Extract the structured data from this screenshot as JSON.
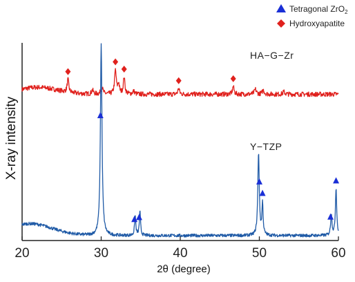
{
  "chart_data": {
    "type": "line",
    "xlabel": "2θ (degree)",
    "ylabel": "X-ray intensity",
    "xlim": [
      20,
      60
    ],
    "x_ticks": [
      20,
      30,
      40,
      50,
      60
    ],
    "x_tick_labels": [
      "20",
      "30",
      "40",
      "50",
      "60"
    ],
    "y_ticks_shown": false,
    "y_scale": "arbitrary units, two traces vertically offset",
    "grid": false,
    "legend_position": "top-right",
    "legend": [
      {
        "symbol": "triangle",
        "color": "#1a2fd6",
        "label": "Tetragonal ZrO",
        "subscript": "2"
      },
      {
        "symbol": "diamond",
        "color": "#e0211d",
        "label": "Hydroxyapatite"
      }
    ],
    "series": [
      {
        "name": "HA−G−Zr",
        "color": "#e0211d",
        "baseline": 0.74,
        "hump": {
          "center": 22,
          "width": 3.5,
          "height": 0.035
        },
        "noise": 0.012,
        "peaks": [
          {
            "x": 25.8,
            "h": 0.065,
            "w": 0.12
          },
          {
            "x": 28.9,
            "h": 0.02,
            "w": 0.15
          },
          {
            "x": 30.1,
            "h": 0.035,
            "w": 0.15
          },
          {
            "x": 31.8,
            "h": 0.12,
            "w": 0.13
          },
          {
            "x": 32.2,
            "h": 0.05,
            "w": 0.12
          },
          {
            "x": 32.9,
            "h": 0.085,
            "w": 0.12
          },
          {
            "x": 34.1,
            "h": 0.015,
            "w": 0.15
          },
          {
            "x": 39.8,
            "h": 0.03,
            "w": 0.12
          },
          {
            "x": 46.7,
            "h": 0.04,
            "w": 0.12
          },
          {
            "x": 49.5,
            "h": 0.025,
            "w": 0.15
          },
          {
            "x": 50.5,
            "h": 0.02,
            "w": 0.15
          },
          {
            "x": 53.1,
            "h": 0.012,
            "w": 0.15
          }
        ],
        "markers": [
          25.8,
          31.8,
          32.9,
          39.8,
          46.7
        ]
      },
      {
        "name": "Y−TZP",
        "color": "#1f5aa6",
        "baseline": 0.025,
        "hump": {
          "center": 21,
          "width": 4,
          "height": 0.06
        },
        "noise": 0.008,
        "peaks": [
          {
            "x": 30.0,
            "h": 0.97,
            "w": 0.12
          },
          {
            "x": 34.3,
            "h": 0.1,
            "w": 0.09
          },
          {
            "x": 34.9,
            "h": 0.12,
            "w": 0.09
          },
          {
            "x": 49.9,
            "h": 0.42,
            "w": 0.11
          },
          {
            "x": 50.4,
            "h": 0.16,
            "w": 0.09
          },
          {
            "x": 59.1,
            "h": 0.11,
            "w": 0.1
          },
          {
            "x": 59.7,
            "h": 0.24,
            "w": 0.1
          }
        ],
        "markers": [
          29.9,
          34.2,
          34.8,
          50.0,
          50.4,
          59.0,
          59.7
        ]
      }
    ]
  }
}
